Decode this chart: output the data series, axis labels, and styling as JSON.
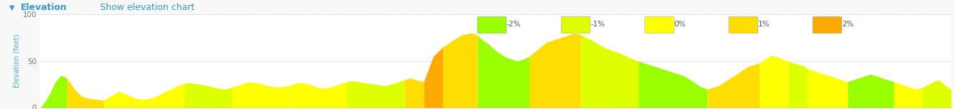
{
  "title": "Elevation",
  "subtitle": "Show elevation chart",
  "ylabel": "Elevation (feet)",
  "xlabel": "",
  "xlim": [
    0,
    4.75
  ],
  "ylim": [
    0,
    100
  ],
  "yticks": [
    0,
    50,
    100
  ],
  "xticks": [
    0,
    1,
    2,
    3,
    4
  ],
  "background_color": "#f8f8f8",
  "plot_bg_color": "#ffffff",
  "grid_color": "#cccccc",
  "legend_labels": [
    "-2%",
    "-1%",
    "0%",
    "1%",
    "2%"
  ],
  "legend_colors": [
    "#99ff00",
    "#ddff00",
    "#ffff00",
    "#ffdd00",
    "#ffaa00"
  ],
  "header_color": "#eeeeee",
  "elevation_points": [
    [
      0.0,
      0
    ],
    [
      0.02,
      5
    ],
    [
      0.05,
      15
    ],
    [
      0.08,
      28
    ],
    [
      0.11,
      35
    ],
    [
      0.14,
      32
    ],
    [
      0.18,
      20
    ],
    [
      0.22,
      12
    ],
    [
      0.26,
      10
    ],
    [
      0.3,
      9
    ],
    [
      0.33,
      8
    ],
    [
      0.36,
      12
    ],
    [
      0.39,
      15
    ],
    [
      0.41,
      18
    ],
    [
      0.43,
      16
    ],
    [
      0.46,
      14
    ],
    [
      0.5,
      10
    ],
    [
      0.54,
      9
    ],
    [
      0.57,
      10
    ],
    [
      0.6,
      12
    ],
    [
      0.63,
      15
    ],
    [
      0.66,
      18
    ],
    [
      0.69,
      21
    ],
    [
      0.72,
      24
    ],
    [
      0.75,
      26
    ],
    [
      0.78,
      27
    ],
    [
      0.81,
      26
    ],
    [
      0.84,
      25
    ],
    [
      0.87,
      24
    ],
    [
      0.9,
      22
    ],
    [
      0.93,
      21
    ],
    [
      0.96,
      20
    ],
    [
      1.0,
      22
    ],
    [
      1.03,
      24
    ],
    [
      1.06,
      26
    ],
    [
      1.09,
      28
    ],
    [
      1.12,
      27
    ],
    [
      1.15,
      26
    ],
    [
      1.18,
      24
    ],
    [
      1.21,
      23
    ],
    [
      1.24,
      22
    ],
    [
      1.27,
      23
    ],
    [
      1.3,
      24
    ],
    [
      1.33,
      26
    ],
    [
      1.36,
      27
    ],
    [
      1.39,
      26
    ],
    [
      1.42,
      24
    ],
    [
      1.45,
      22
    ],
    [
      1.48,
      21
    ],
    [
      1.51,
      22
    ],
    [
      1.54,
      24
    ],
    [
      1.57,
      26
    ],
    [
      1.6,
      28
    ],
    [
      1.63,
      29
    ],
    [
      1.66,
      28
    ],
    [
      1.69,
      27
    ],
    [
      1.72,
      26
    ],
    [
      1.75,
      25
    ],
    [
      1.78,
      24
    ],
    [
      1.81,
      24
    ],
    [
      1.84,
      26
    ],
    [
      1.87,
      28
    ],
    [
      1.9,
      30
    ],
    [
      1.93,
      32
    ],
    [
      1.96,
      30
    ],
    [
      2.0,
      28
    ],
    [
      2.05,
      55
    ],
    [
      2.1,
      65
    ],
    [
      2.15,
      72
    ],
    [
      2.2,
      78
    ],
    [
      2.25,
      80
    ],
    [
      2.28,
      78
    ],
    [
      2.31,
      72
    ],
    [
      2.34,
      68
    ],
    [
      2.37,
      62
    ],
    [
      2.4,
      58
    ],
    [
      2.43,
      54
    ],
    [
      2.46,
      52
    ],
    [
      2.49,
      50
    ],
    [
      2.52,
      52
    ],
    [
      2.55,
      55
    ],
    [
      2.58,
      60
    ],
    [
      2.61,
      65
    ],
    [
      2.64,
      70
    ],
    [
      2.67,
      72
    ],
    [
      2.7,
      74
    ],
    [
      2.73,
      76
    ],
    [
      2.76,
      78
    ],
    [
      2.79,
      80
    ],
    [
      2.82,
      78
    ],
    [
      2.85,
      75
    ],
    [
      2.88,
      72
    ],
    [
      2.91,
      68
    ],
    [
      2.94,
      65
    ],
    [
      2.97,
      62
    ],
    [
      3.0,
      60
    ],
    [
      3.03,
      58
    ],
    [
      3.06,
      55
    ],
    [
      3.09,
      52
    ],
    [
      3.12,
      50
    ],
    [
      3.15,
      48
    ],
    [
      3.18,
      46
    ],
    [
      3.21,
      44
    ],
    [
      3.24,
      42
    ],
    [
      3.27,
      40
    ],
    [
      3.3,
      38
    ],
    [
      3.33,
      36
    ],
    [
      3.36,
      34
    ],
    [
      3.39,
      30
    ],
    [
      3.42,
      26
    ],
    [
      3.45,
      22
    ],
    [
      3.48,
      20
    ],
    [
      3.51,
      22
    ],
    [
      3.54,
      24
    ],
    [
      3.57,
      28
    ],
    [
      3.6,
      32
    ],
    [
      3.63,
      36
    ],
    [
      3.66,
      40
    ],
    [
      3.69,
      44
    ],
    [
      3.72,
      46
    ],
    [
      3.75,
      48
    ],
    [
      3.78,
      52
    ],
    [
      3.81,
      56
    ],
    [
      3.84,
      55
    ],
    [
      3.87,
      52
    ],
    [
      3.9,
      50
    ],
    [
      3.93,
      48
    ],
    [
      3.96,
      46
    ],
    [
      3.99,
      44
    ],
    [
      4.0,
      42
    ],
    [
      4.03,
      40
    ],
    [
      4.06,
      38
    ],
    [
      4.09,
      36
    ],
    [
      4.12,
      34
    ],
    [
      4.15,
      32
    ],
    [
      4.18,
      30
    ],
    [
      4.21,
      28
    ],
    [
      4.24,
      30
    ],
    [
      4.27,
      32
    ],
    [
      4.3,
      34
    ],
    [
      4.33,
      36
    ],
    [
      4.36,
      34
    ],
    [
      4.39,
      32
    ],
    [
      4.42,
      30
    ],
    [
      4.45,
      28
    ],
    [
      4.48,
      26
    ],
    [
      4.51,
      24
    ],
    [
      4.54,
      22
    ],
    [
      4.57,
      20
    ],
    [
      4.6,
      22
    ],
    [
      4.63,
      25
    ],
    [
      4.66,
      28
    ],
    [
      4.68,
      30
    ],
    [
      4.7,
      28
    ],
    [
      4.72,
      24
    ],
    [
      4.75,
      20
    ]
  ],
  "segment_colors": [
    {
      "x_start": 0.0,
      "x_end": 0.14,
      "color": "#99ff00"
    },
    {
      "x_start": 0.14,
      "x_end": 0.33,
      "color": "#ffdd00"
    },
    {
      "x_start": 0.33,
      "x_end": 0.5,
      "color": "#ffff00"
    },
    {
      "x_start": 0.5,
      "x_end": 0.75,
      "color": "#ffff00"
    },
    {
      "x_start": 0.75,
      "x_end": 1.0,
      "color": "#ddff00"
    },
    {
      "x_start": 1.0,
      "x_end": 1.3,
      "color": "#ffff00"
    },
    {
      "x_start": 1.3,
      "x_end": 1.6,
      "color": "#ffff00"
    },
    {
      "x_start": 1.6,
      "x_end": 1.9,
      "color": "#ddff00"
    },
    {
      "x_start": 1.9,
      "x_end": 2.0,
      "color": "#ffdd00"
    },
    {
      "x_start": 2.0,
      "x_end": 2.1,
      "color": "#ffaa00"
    },
    {
      "x_start": 2.1,
      "x_end": 2.28,
      "color": "#ffdd00"
    },
    {
      "x_start": 2.28,
      "x_end": 2.55,
      "color": "#99ff00"
    },
    {
      "x_start": 2.55,
      "x_end": 2.82,
      "color": "#ffdd00"
    },
    {
      "x_start": 2.82,
      "x_end": 3.12,
      "color": "#ddff00"
    },
    {
      "x_start": 3.12,
      "x_end": 3.48,
      "color": "#99ff00"
    },
    {
      "x_start": 3.48,
      "x_end": 3.75,
      "color": "#ffdd00"
    },
    {
      "x_start": 3.75,
      "x_end": 3.9,
      "color": "#ffff00"
    },
    {
      "x_start": 3.9,
      "x_end": 4.0,
      "color": "#ddff00"
    },
    {
      "x_start": 4.0,
      "x_end": 4.21,
      "color": "#ffff00"
    },
    {
      "x_start": 4.21,
      "x_end": 4.45,
      "color": "#99ff00"
    },
    {
      "x_start": 4.45,
      "x_end": 4.6,
      "color": "#ffff00"
    },
    {
      "x_start": 4.6,
      "x_end": 4.75,
      "color": "#ddff00"
    }
  ]
}
